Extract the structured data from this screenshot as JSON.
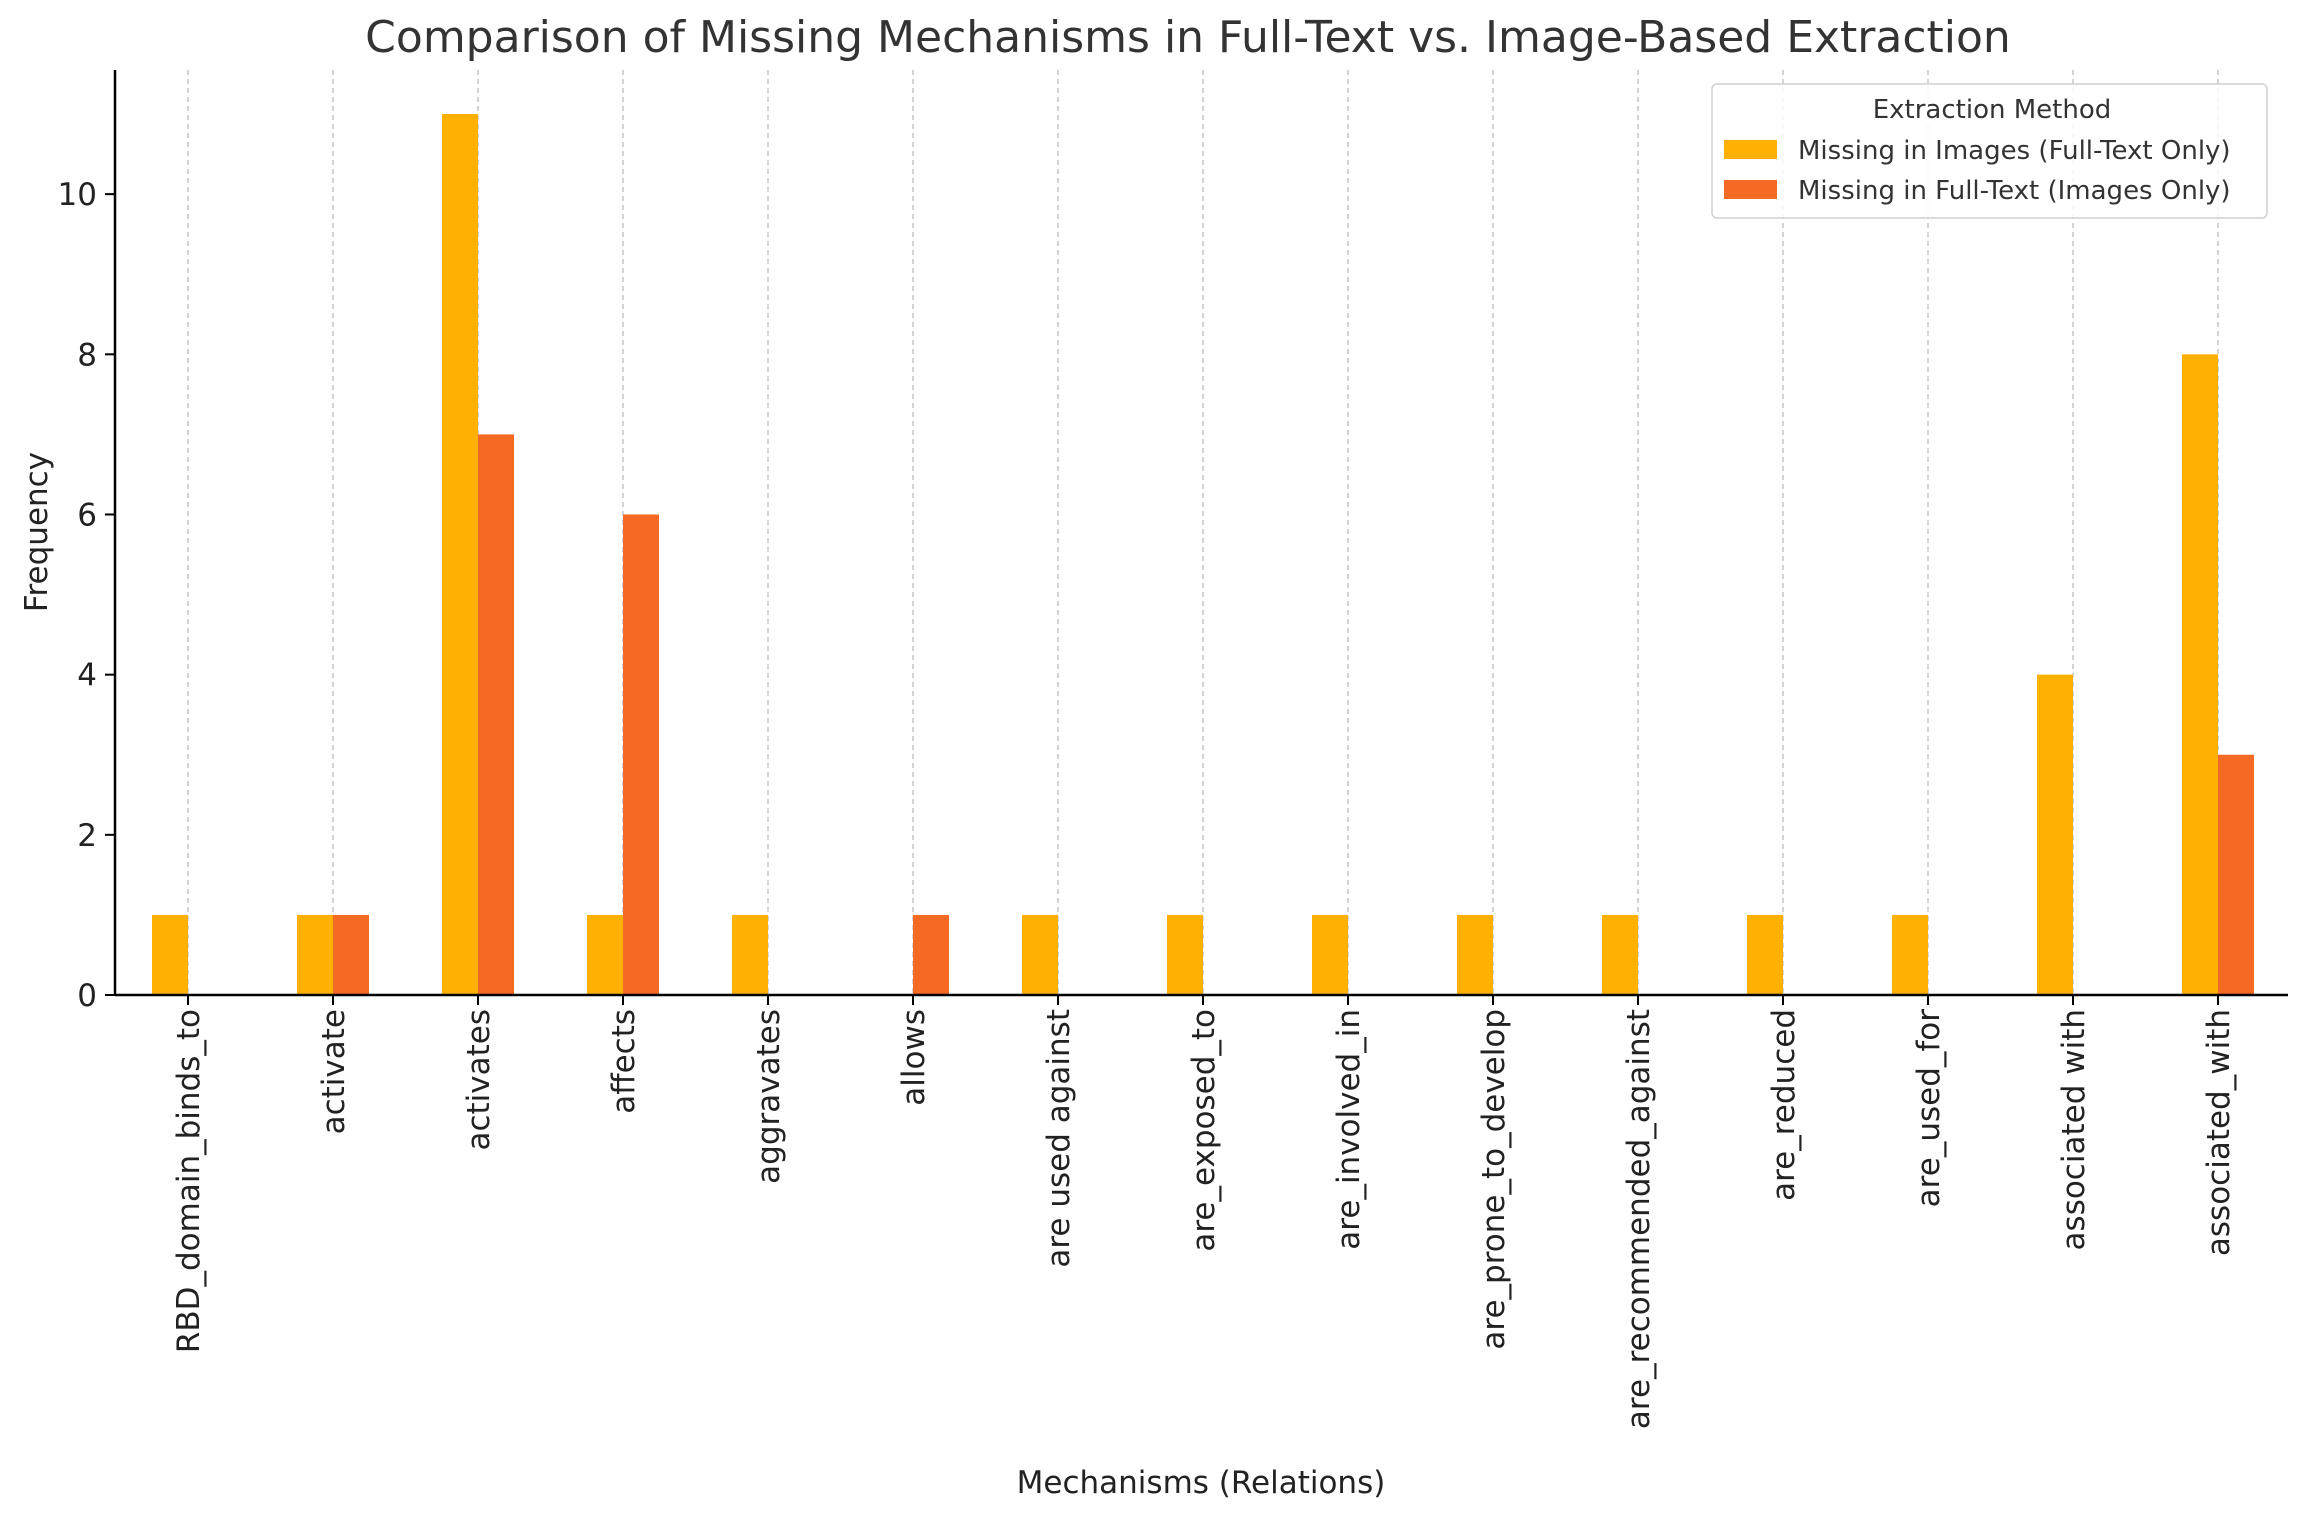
{
  "chart_data": {
    "type": "bar",
    "title": "Comparison of Missing Mechanisms in Full-Text vs. Image-Based Extraction",
    "xlabel": "Mechanisms (Relations)",
    "ylabel": "Frequency",
    "ylim": [
      0,
      11.55
    ],
    "yticks": [
      0,
      2,
      4,
      6,
      8,
      10
    ],
    "grid": "vertical dashed",
    "legend_title": "Extraction Method",
    "legend_position": "top-right",
    "categories": [
      "RBD_domain_binds_to",
      "activate",
      "activates",
      "affects",
      "aggravates",
      "allows",
      "are used against",
      "are_exposed_to",
      "are_involved_in",
      "are_prone_to_develop",
      "are_recommended_against",
      "are_reduced",
      "are_used_for",
      "associated with",
      "associated_with"
    ],
    "series": [
      {
        "name": "Missing in Images (Full-Text Only)",
        "color": "#FFB000",
        "values": [
          1,
          1,
          11,
          1,
          1,
          0,
          1,
          1,
          1,
          1,
          1,
          1,
          1,
          4,
          8
        ]
      },
      {
        "name": "Missing in Full-Text (Images Only)",
        "color": "#F46A25",
        "values": [
          0,
          1,
          7,
          6,
          0,
          1,
          0,
          0,
          0,
          0,
          0,
          0,
          0,
          0,
          3
        ]
      }
    ]
  }
}
